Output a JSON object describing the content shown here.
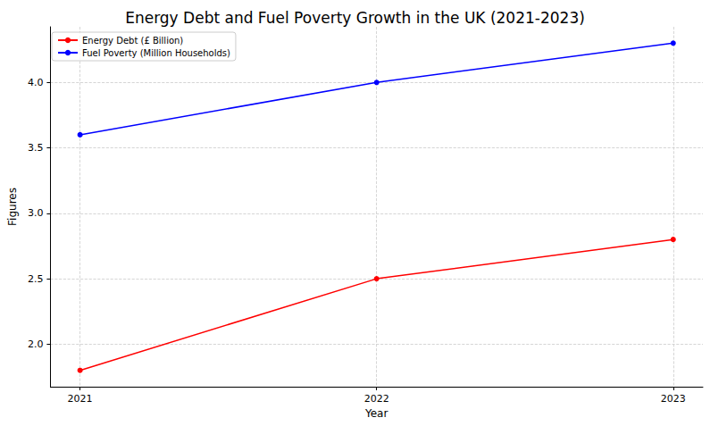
{
  "chart_data": {
    "type": "line",
    "title": "Energy Debt and Fuel Poverty Growth in the UK (2021-2023)",
    "x_label": "Year",
    "y_label": "Figures",
    "x": [
      2021,
      2022,
      2023
    ],
    "series": [
      {
        "name": "Energy Debt (£ Billion)",
        "color": "#ff0000",
        "values": [
          1.8,
          2.5,
          2.8
        ],
        "marker": "o",
        "line_style": "solid"
      },
      {
        "name": "Fuel Poverty (Million Households)",
        "color": "#0000ff",
        "values": [
          3.6,
          4.0,
          4.3
        ],
        "marker": "o",
        "line_style": "solid"
      }
    ],
    "xlim": [
      2020.9,
      2023.1
    ],
    "xticks": [
      2021,
      2022,
      2023
    ],
    "ylim": [
      1.675,
      4.425
    ],
    "yticks": [
      {
        "value": 2.0,
        "label": "2.0"
      },
      {
        "value": 2.5,
        "label": "2.5"
      },
      {
        "value": 3.0,
        "label": "3.0"
      },
      {
        "value": 3.5,
        "label": "3.5"
      },
      {
        "value": 4.0,
        "label": "4.0"
      }
    ],
    "grid": true,
    "legend": "upper left"
  }
}
